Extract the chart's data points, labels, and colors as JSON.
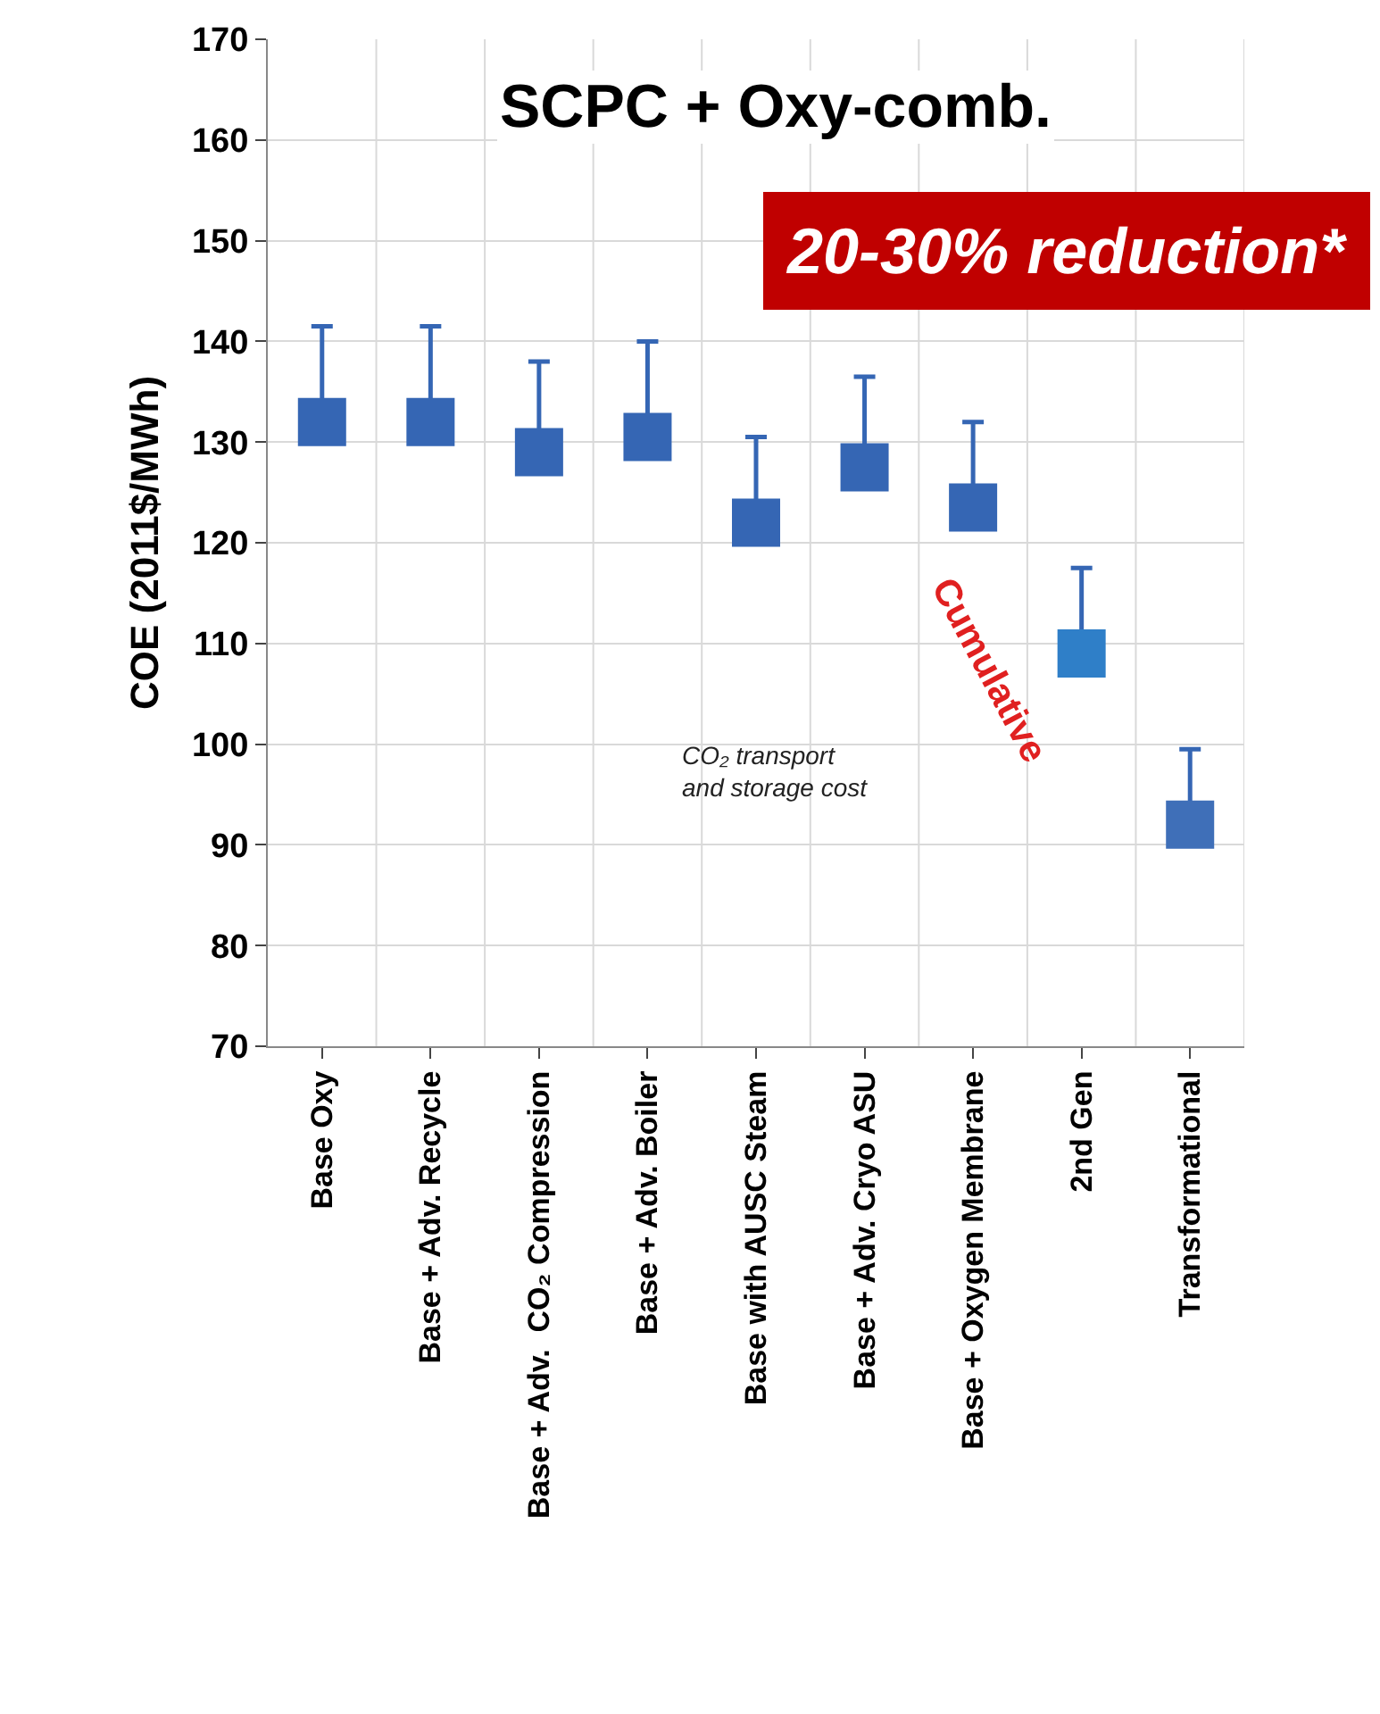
{
  "chart_data": {
    "type": "scatter",
    "title": "SCPC + Oxy-comb.",
    "ylabel": "COE (2011$/MWh)",
    "categories": [
      "Base Oxy",
      "Base + Adv. Recycle",
      "Base + Adv.  CO₂ Compression",
      "Base + Adv. Boiler",
      "Base with AUSC Steam",
      "Base + Adv. Cryo ASU",
      "Base + Oxygen Membrane",
      "2nd Gen",
      "Transformational"
    ],
    "values": [
      132,
      132,
      129,
      130.5,
      122,
      127.5,
      123.5,
      109,
      92
    ],
    "errors": [
      [
        132,
        141.5
      ],
      [
        132,
        141.5
      ],
      [
        129,
        138
      ],
      [
        130.5,
        140
      ],
      [
        122,
        130.5
      ],
      [
        127.5,
        136.5
      ],
      [
        123.5,
        132
      ],
      [
        109,
        117.5
      ],
      [
        92,
        99.5
      ]
    ],
    "colors": [
      "#3566b4",
      "#3566b4",
      "#3566b4",
      "#3566b4",
      "#3566b4",
      "#3566b4",
      "#3566b4",
      "#2f7fc8",
      "#3f6fb8"
    ],
    "ylim": [
      70,
      170
    ],
    "yticks": [
      70,
      80,
      90,
      100,
      110,
      120,
      130,
      140,
      150,
      160,
      170
    ],
    "grid": true,
    "marker": "square",
    "legend": false,
    "annotations": [
      "20-30% reduction*",
      "CO₂ transport and storage cost",
      "Cumulative"
    ]
  }
}
